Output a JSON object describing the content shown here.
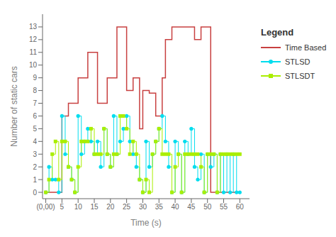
{
  "chart_data": {
    "type": "line",
    "xlabel": "Time (s)",
    "ylabel": "Number of static cars",
    "xlim": [
      -1,
      63
    ],
    "ylim": [
      -0.5,
      14
    ],
    "xticks": [
      {
        "value": 0,
        "label": "(0,00)"
      },
      5,
      10,
      15,
      20,
      25,
      30,
      35,
      40,
      45,
      50,
      55,
      60
    ],
    "yticks": [
      0,
      1,
      2,
      3,
      4,
      5,
      6,
      7,
      8,
      9,
      10,
      11,
      12,
      13
    ],
    "legend": "right",
    "legend_title": "Legend",
    "series": [
      {
        "name": "Time Based",
        "color": "#c84040",
        "x": [
          0,
          5,
          5,
          7,
          7,
          10,
          10,
          13,
          13,
          16,
          16,
          19,
          19,
          22,
          22,
          25,
          25,
          27,
          27,
          29,
          29,
          30,
          30,
          32,
          32,
          34,
          34,
          36,
          36,
          37,
          37,
          39,
          39,
          40,
          40,
          43,
          43,
          46,
          46,
          48,
          48,
          51,
          51,
          54,
          54,
          57,
          57,
          60
        ],
        "values": [
          0,
          0,
          6,
          6,
          7,
          7,
          9,
          9,
          11,
          11,
          7,
          7,
          9,
          9,
          13,
          13,
          8,
          8,
          9,
          9,
          5,
          5,
          8,
          8,
          7.8,
          7.8,
          6,
          6,
          9,
          9,
          12,
          12,
          13,
          13,
          13,
          13,
          13,
          13,
          12,
          12,
          13,
          13,
          0,
          0,
          0,
          0,
          0,
          0
        ]
      },
      {
        "name": "STLSD",
        "color": "#00ddee",
        "marker": "circle",
        "x": [
          0,
          1,
          1,
          2,
          2,
          3,
          3,
          4,
          4,
          5,
          5,
          6,
          6,
          7,
          7,
          8,
          8,
          9,
          9,
          10,
          10,
          11,
          11,
          12,
          12,
          13,
          13,
          14,
          14,
          15,
          15,
          16,
          16,
          17,
          17,
          18,
          18,
          19,
          19,
          20,
          20,
          21,
          21,
          22,
          22,
          23,
          23,
          24,
          24,
          25,
          25,
          26,
          26,
          27,
          27,
          28,
          28,
          29,
          29,
          30,
          30,
          31,
          31,
          32,
          32,
          33,
          33,
          34,
          34,
          35,
          35,
          36,
          36,
          37,
          37,
          38,
          38,
          39,
          39,
          40,
          40,
          41,
          41,
          42,
          42,
          43,
          43,
          44,
          44,
          45,
          45,
          46,
          46,
          47,
          47,
          48,
          48,
          49,
          49,
          50,
          50,
          51,
          51,
          52,
          52,
          53,
          53,
          54,
          54,
          55,
          55,
          56,
          56,
          57,
          57,
          58,
          58,
          59,
          59,
          60
        ],
        "values": [
          0,
          0,
          2,
          2,
          1,
          1,
          1,
          1,
          0,
          0,
          6,
          6,
          3,
          3,
          2,
          2,
          1,
          1,
          0,
          0,
          6,
          6,
          3,
          3,
          4,
          4,
          5,
          5,
          4,
          4,
          3,
          3,
          4,
          4,
          2,
          2,
          5,
          5,
          3,
          3,
          2,
          2,
          6,
          6,
          3,
          3,
          4,
          4,
          5,
          5,
          6,
          6,
          4,
          4,
          3,
          3,
          2,
          2,
          1,
          1,
          0,
          0,
          4,
          4,
          2,
          2,
          3,
          3,
          4,
          4,
          5,
          5,
          6,
          6,
          4,
          4,
          2,
          2,
          0,
          0,
          4,
          4,
          3,
          3,
          0,
          0,
          4,
          4,
          3,
          3,
          5,
          5,
          2,
          2,
          1,
          1,
          3,
          3,
          0,
          0,
          3,
          3,
          2,
          2,
          3,
          3,
          0,
          0,
          3,
          3,
          0,
          0,
          3,
          3,
          0,
          0,
          3,
          3,
          0,
          0
        ],
        "marker_x": [
          0,
          1,
          2,
          3,
          4,
          5,
          6,
          7,
          8,
          9,
          10,
          11,
          12,
          13,
          14,
          15,
          16,
          17,
          18,
          19,
          20,
          21,
          22,
          23,
          24,
          25,
          26,
          27,
          28,
          29,
          30,
          31,
          32,
          33,
          34,
          35,
          36,
          37,
          38,
          39,
          40,
          41,
          42,
          43,
          44,
          45,
          46,
          47,
          48,
          49,
          50,
          51,
          52,
          53,
          54,
          55,
          56,
          57,
          58,
          59,
          60
        ],
        "marker_values": [
          0,
          2,
          1,
          1,
          0,
          6,
          3,
          2,
          1,
          0,
          6,
          3,
          4,
          5,
          4,
          3,
          4,
          2,
          5,
          3,
          2,
          6,
          3,
          4,
          5,
          6,
          4,
          3,
          2,
          1,
          0,
          4,
          2,
          3,
          4,
          5,
          6,
          4,
          2,
          0,
          4,
          3,
          0,
          4,
          3,
          5,
          2,
          1,
          3,
          0,
          3,
          2,
          3,
          0,
          3,
          0,
          3,
          0,
          3,
          0,
          0
        ]
      },
      {
        "name": "STLSDT",
        "color": "#aaee00",
        "marker": "square",
        "x": [
          0,
          1,
          1,
          2,
          2,
          3,
          3,
          4,
          4,
          5,
          5,
          6,
          6,
          7,
          7,
          8,
          8,
          9,
          9,
          10,
          10,
          11,
          11,
          12,
          12,
          13,
          13,
          14,
          14,
          15,
          15,
          16,
          16,
          17,
          17,
          18,
          18,
          19,
          19,
          20,
          20,
          21,
          21,
          22,
          22,
          23,
          23,
          24,
          24,
          25,
          25,
          26,
          26,
          27,
          27,
          28,
          28,
          29,
          29,
          30,
          30,
          31,
          31,
          32,
          32,
          33,
          33,
          34,
          34,
          35,
          35,
          36,
          36,
          37,
          37,
          38,
          38,
          39,
          39,
          40,
          40,
          41,
          41,
          42,
          42,
          43,
          43,
          44,
          44,
          45,
          45,
          46,
          46,
          47,
          47,
          48,
          48,
          49,
          49,
          50,
          50,
          51,
          51,
          52,
          52,
          53,
          53,
          54,
          54,
          55,
          55,
          56,
          56,
          57,
          57,
          58,
          58,
          59,
          59,
          60
        ],
        "values": [
          0,
          0,
          1,
          1,
          3,
          3,
          4,
          4,
          1,
          1,
          4,
          4,
          4,
          4,
          2,
          2,
          1,
          1,
          0,
          0,
          2,
          2,
          4,
          4,
          4,
          4,
          4,
          4,
          5,
          5,
          3,
          3,
          3,
          3,
          3,
          3,
          5,
          5,
          3,
          3,
          2,
          2,
          3,
          3,
          3,
          3,
          6,
          6,
          6,
          6,
          5,
          5,
          3,
          3,
          4,
          4,
          3,
          3,
          1,
          1,
          0,
          0,
          1,
          1,
          0,
          0,
          3,
          3,
          4,
          4,
          5,
          5,
          3,
          3,
          3,
          3,
          3,
          3,
          0,
          0,
          2,
          2,
          3,
          3,
          0,
          0,
          3,
          3,
          3,
          3,
          3,
          3,
          3,
          3,
          3,
          3,
          2,
          2,
          0,
          0,
          3,
          3,
          3,
          3,
          3,
          3,
          0,
          0,
          3,
          3,
          3,
          3,
          3,
          3,
          3,
          3,
          3,
          3,
          3,
          3
        ],
        "marker_x": [
          0,
          1,
          2,
          3,
          4,
          5,
          6,
          7,
          8,
          9,
          10,
          11,
          12,
          13,
          14,
          15,
          16,
          17,
          18,
          19,
          20,
          21,
          22,
          23,
          24,
          25,
          26,
          27,
          28,
          29,
          30,
          31,
          32,
          33,
          34,
          35,
          36,
          37,
          38,
          39,
          40,
          41,
          42,
          43,
          44,
          45,
          46,
          47,
          48,
          49,
          50,
          51,
          52,
          53,
          54,
          55,
          56,
          57,
          58,
          59,
          60
        ],
        "marker_values": [
          0,
          1,
          3,
          4,
          1,
          4,
          4,
          2,
          1,
          0,
          2,
          4,
          4,
          4,
          5,
          3,
          3,
          3,
          5,
          3,
          2,
          3,
          3,
          6,
          6,
          5,
          3,
          4,
          3,
          1,
          0,
          1,
          0,
          3,
          4,
          5,
          3,
          3,
          3,
          0,
          2,
          3,
          0,
          3,
          3,
          3,
          3,
          3,
          2,
          0,
          3,
          3,
          3,
          0,
          3,
          3,
          3,
          3,
          3,
          3,
          3
        ]
      }
    ]
  }
}
